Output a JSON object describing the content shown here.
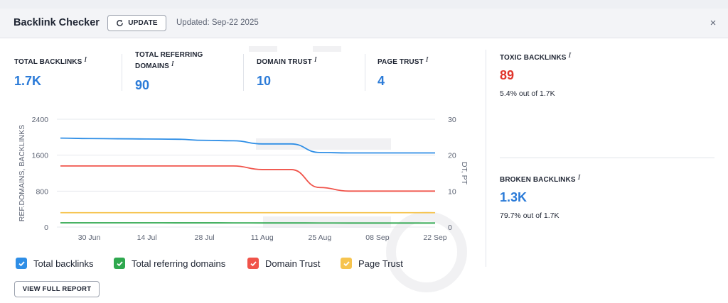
{
  "header": {
    "title": "Backlink Checker",
    "update_label": "UPDATE",
    "updated_text": "Updated: Sep-22 2025",
    "close_label": "×"
  },
  "metrics": [
    {
      "label": "TOTAL BACKLINKS",
      "value": "1.7K"
    },
    {
      "label_line1": "TOTAL REFERRING",
      "label_line2": "DOMAINS",
      "value": "90"
    },
    {
      "label": "DOMAIN TRUST",
      "value": "10"
    },
    {
      "label": "PAGE TRUST",
      "value": "4"
    }
  ],
  "info_icon": "i",
  "side": {
    "toxic": {
      "label": "TOXIC BACKLINKS",
      "value": "89",
      "sub": "5.4% out of 1.7K",
      "color": "#e0342b"
    },
    "broken": {
      "label": "BROKEN BACKLINKS",
      "value": "1.3K",
      "sub": "79.7% out of 1.7K"
    }
  },
  "chart_data": {
    "type": "line",
    "x": [
      "2025-06-23",
      "2025-06-30",
      "2025-07-07",
      "2025-07-14",
      "2025-07-21",
      "2025-07-28",
      "2025-08-04",
      "2025-08-11",
      "2025-08-18",
      "2025-08-25",
      "2025-09-01",
      "2025-09-08",
      "2025-09-15",
      "2025-09-22"
    ],
    "x_tick_labels": [
      "30 Jun",
      "14 Jul",
      "28 Jul",
      "11 Aug",
      "25 Aug",
      "08 Sep",
      "22 Sep"
    ],
    "ylabel_left": "REF.DOMAINS, BACKLINKS",
    "ylabel_right": "DT, PT",
    "ylim_left": [
      0,
      2400
    ],
    "ylim_right": [
      0,
      30
    ],
    "yticks_left": [
      "2400",
      "1600",
      "800",
      "0"
    ],
    "yticks_right": [
      "30",
      "20",
      "10",
      "0"
    ],
    "series": [
      {
        "name": "Total backlinks",
        "axis": "left",
        "color": "#2e8ee6",
        "values": [
          1980,
          1970,
          1965,
          1960,
          1955,
          1930,
          1920,
          1850,
          1850,
          1660,
          1650,
          1650,
          1650,
          1650
        ]
      },
      {
        "name": "Total referring domains",
        "axis": "left",
        "color": "#2fa84f",
        "values": [
          95,
          95,
          95,
          95,
          94,
          94,
          93,
          92,
          92,
          91,
          90,
          90,
          90,
          90
        ]
      },
      {
        "name": "Domain Trust",
        "axis": "right",
        "color": "#f0534a",
        "values": [
          17,
          17,
          17,
          17,
          17,
          17,
          17,
          16,
          16,
          11,
          10,
          10,
          10,
          10
        ]
      },
      {
        "name": "Page Trust",
        "axis": "right",
        "color": "#f6c44f",
        "values": [
          4,
          4,
          4,
          4,
          4,
          4,
          4,
          4,
          4,
          4,
          4,
          4,
          4,
          4
        ]
      }
    ],
    "grid": "horizontal"
  },
  "legend": [
    {
      "label": "Total backlinks",
      "color": "#2e8ee6"
    },
    {
      "label": "Total referring domains",
      "color": "#2fa84f"
    },
    {
      "label": "Domain Trust",
      "color": "#f0534a"
    },
    {
      "label": "Page Trust",
      "color": "#f6c44f"
    }
  ],
  "report_label": "VIEW FULL REPORT"
}
